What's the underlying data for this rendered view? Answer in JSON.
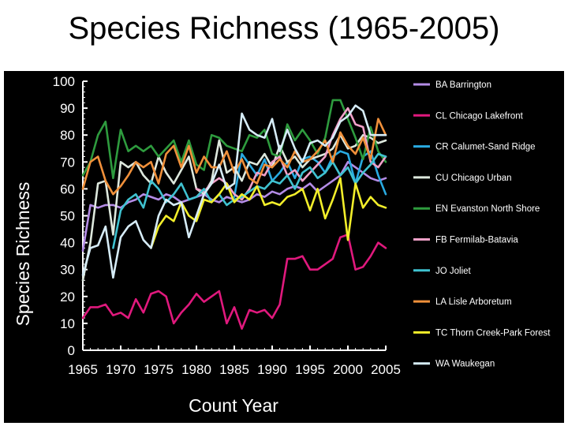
{
  "chart_data": {
    "type": "line",
    "title": "Species Richness (1965-2005)",
    "xlabel": "Count Year",
    "ylabel": "Species Richness",
    "xlim": [
      1965,
      2005
    ],
    "ylim": [
      0,
      100
    ],
    "x_ticks": [
      1965,
      1970,
      1975,
      1980,
      1985,
      1990,
      1995,
      2000,
      2005
    ],
    "y_ticks": [
      0,
      10,
      20,
      30,
      40,
      50,
      60,
      70,
      80,
      90,
      100
    ],
    "grid": false,
    "legend_position": "right",
    "x": [
      1965,
      1966,
      1967,
      1968,
      1969,
      1970,
      1971,
      1972,
      1973,
      1974,
      1975,
      1976,
      1977,
      1978,
      1979,
      1980,
      1981,
      1982,
      1983,
      1984,
      1985,
      1986,
      1987,
      1988,
      1989,
      1990,
      1991,
      1992,
      1993,
      1994,
      1995,
      1996,
      1997,
      1998,
      1999,
      2000,
      2001,
      2002,
      2003,
      2004,
      2005
    ],
    "series": [
      {
        "name": "BA Barrington",
        "color": "#b48ce6",
        "values": [
          37,
          54,
          53,
          54,
          54,
          53,
          55,
          56,
          58,
          57,
          56,
          58,
          57,
          55,
          56,
          57,
          58,
          56,
          55,
          57,
          56,
          55,
          56,
          58,
          57,
          59,
          58,
          60,
          61,
          60,
          62,
          59,
          61,
          63,
          65,
          70,
          68,
          66,
          64,
          63,
          64
        ]
      },
      {
        "name": "CL Chicago Lakefront",
        "color": "#e0197d",
        "values": [
          12,
          16,
          16,
          17,
          13,
          14,
          12,
          19,
          14,
          21,
          22,
          20,
          10,
          14,
          17,
          21,
          18,
          20,
          22,
          10,
          16,
          8,
          15,
          14,
          15,
          12,
          17,
          34,
          34,
          35,
          30,
          30,
          32,
          34,
          42,
          43,
          30,
          31,
          35,
          40,
          38
        ]
      },
      {
        "name": "CR Calumet-Sand Ridge",
        "color": "#29aae1",
        "values": [
          null,
          null,
          null,
          null,
          null,
          null,
          null,
          null,
          null,
          null,
          null,
          null,
          null,
          null,
          null,
          null,
          null,
          null,
          null,
          null,
          57,
          73,
          69,
          65,
          71,
          63,
          66,
          70,
          64,
          71,
          72,
          70,
          66,
          72,
          74,
          73,
          62,
          72,
          74,
          65,
          58
        ]
      },
      {
        "name": "CU Chicago Urban",
        "color": "#dde8dd",
        "values": [
          26,
          40,
          62,
          63,
          43,
          70,
          68,
          70,
          65,
          62,
          72,
          66,
          62,
          67,
          72,
          60,
          58,
          63,
          78,
          66,
          68,
          63,
          70,
          69,
          73,
          68,
          76,
          70,
          72,
          68,
          71,
          72,
          73,
          75,
          80,
          75,
          76,
          80,
          79,
          77,
          78
        ]
      },
      {
        "name": "EN Evanston North Shore",
        "color": "#2e9b3e",
        "values": [
          65,
          70,
          80,
          85,
          64,
          82,
          74,
          76,
          74,
          76,
          72,
          75,
          78,
          70,
          78,
          69,
          67,
          80,
          79,
          76,
          75,
          74,
          80,
          79,
          82,
          73,
          72,
          84,
          78,
          82,
          78,
          73,
          79,
          93,
          93,
          86,
          79,
          71,
          83,
          74,
          70
        ]
      },
      {
        "name": "FB Fermilab-Batavia",
        "color": "#f0a0c8",
        "values": [
          null,
          null,
          null,
          null,
          null,
          null,
          null,
          null,
          null,
          null,
          null,
          null,
          null,
          null,
          null,
          60,
          59,
          62,
          64,
          62,
          58,
          56,
          60,
          66,
          65,
          70,
          72,
          65,
          67,
          63,
          66,
          69,
          72,
          80,
          86,
          90,
          84,
          83,
          70,
          68,
          72
        ]
      },
      {
        "name": "JO Joliet",
        "color": "#3fc2d0",
        "values": [
          null,
          null,
          null,
          null,
          38,
          52,
          56,
          58,
          53,
          63,
          60,
          55,
          58,
          62,
          56,
          57,
          60,
          55,
          58,
          54,
          56,
          57,
          59,
          61,
          60,
          63,
          62,
          65,
          60,
          66,
          68,
          64,
          66,
          70,
          65,
          68,
          62,
          66,
          69,
          73,
          72
        ]
      },
      {
        "name": "LA Lisle Arboretum",
        "color": "#f0903a",
        "values": [
          60,
          70,
          72,
          63,
          58,
          61,
          65,
          70,
          68,
          70,
          62,
          73,
          76,
          68,
          76,
          66,
          72,
          68,
          68,
          74,
          66,
          71,
          64,
          62,
          69,
          68,
          71,
          68,
          74,
          70,
          71,
          74,
          78,
          70,
          81,
          76,
          73,
          79,
          71,
          86,
          80
        ]
      },
      {
        "name": "TC Thorn Creek-Park Forest",
        "color": "#f2ee2a",
        "values": [
          null,
          null,
          null,
          null,
          null,
          null,
          null,
          null,
          null,
          38,
          46,
          50,
          48,
          55,
          50,
          48,
          56,
          55,
          58,
          62,
          55,
          58,
          56,
          61,
          54,
          55,
          54,
          57,
          58,
          60,
          52,
          60,
          49,
          56,
          64,
          41,
          62,
          53,
          57,
          54,
          53
        ]
      },
      {
        "name": "WA Waukegan",
        "color": "#d6ecf7",
        "values": [
          28,
          38,
          39,
          46,
          27,
          42,
          46,
          48,
          41,
          38,
          50,
          56,
          54,
          55,
          42,
          50,
          58,
          62,
          69,
          60,
          62,
          88,
          82,
          80,
          79,
          86,
          74,
          82,
          75,
          70,
          77,
          78,
          76,
          79,
          85,
          87,
          91,
          89,
          80,
          80,
          80
        ]
      }
    ]
  }
}
